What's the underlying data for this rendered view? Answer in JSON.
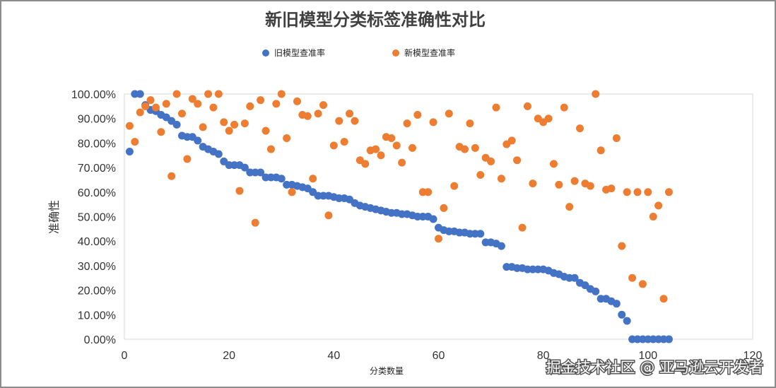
{
  "watermark": "掘金技术社区 @ 亚马逊云开发者",
  "colors": {
    "old_series": "#4472C4",
    "new_series": "#ED7D31",
    "axis": "#d9d9d9",
    "background": "#ffffff"
  },
  "chart_data": {
    "type": "scatter",
    "title": "新旧模型分类标签准确性对比",
    "xlabel": "分类数量",
    "ylabel": "准确性",
    "xlim": [
      0,
      120
    ],
    "ylim": [
      0,
      1
    ],
    "grid": false,
    "legend_position": "top",
    "x_ticks": [
      "0",
      "20",
      "40",
      "60",
      "80",
      "100",
      "120"
    ],
    "y_ticks": [
      "0.00%",
      "10.00%",
      "20.00%",
      "30.00%",
      "40.00%",
      "50.00%",
      "60.00%",
      "70.00%",
      "80.00%",
      "90.00%",
      "100.00%"
    ],
    "series": [
      {
        "name": "旧模型查准率",
        "color": "#4472C4",
        "x": [
          1,
          2,
          3,
          4,
          5,
          6,
          7,
          8,
          9,
          10,
          11,
          12,
          13,
          14,
          15,
          16,
          17,
          18,
          19,
          20,
          21,
          22,
          23,
          24,
          25,
          26,
          27,
          28,
          29,
          30,
          31,
          32,
          33,
          34,
          35,
          36,
          37,
          38,
          39,
          40,
          41,
          42,
          43,
          44,
          45,
          46,
          47,
          48,
          49,
          50,
          51,
          52,
          53,
          54,
          55,
          56,
          57,
          58,
          59,
          60,
          61,
          62,
          63,
          64,
          65,
          66,
          67,
          68,
          69,
          70,
          71,
          72,
          73,
          74,
          75,
          76,
          77,
          78,
          79,
          80,
          81,
          82,
          83,
          84,
          85,
          86,
          87,
          88,
          89,
          90,
          91,
          92,
          93,
          94,
          95,
          96,
          97,
          98,
          99,
          100,
          101,
          102,
          103,
          104
        ],
        "values": [
          0.765,
          1.0,
          1.0,
          0.955,
          0.935,
          0.93,
          0.915,
          0.905,
          0.89,
          0.875,
          0.83,
          0.825,
          0.825,
          0.81,
          0.785,
          0.775,
          0.765,
          0.755,
          0.725,
          0.71,
          0.71,
          0.71,
          0.7,
          0.68,
          0.68,
          0.68,
          0.66,
          0.66,
          0.66,
          0.655,
          0.63,
          0.63,
          0.625,
          0.62,
          0.615,
          0.6,
          0.585,
          0.585,
          0.585,
          0.58,
          0.575,
          0.575,
          0.57,
          0.555,
          0.545,
          0.54,
          0.535,
          0.53,
          0.525,
          0.52,
          0.515,
          0.515,
          0.51,
          0.51,
          0.505,
          0.5,
          0.5,
          0.5,
          0.49,
          0.455,
          0.445,
          0.44,
          0.44,
          0.435,
          0.435,
          0.43,
          0.43,
          0.43,
          0.395,
          0.395,
          0.39,
          0.38,
          0.295,
          0.295,
          0.29,
          0.29,
          0.285,
          0.285,
          0.285,
          0.285,
          0.28,
          0.27,
          0.265,
          0.255,
          0.25,
          0.25,
          0.23,
          0.22,
          0.205,
          0.195,
          0.165,
          0.165,
          0.155,
          0.145,
          0.1,
          0.075,
          0.0,
          0.0,
          0.0,
          0.0,
          0.0,
          0.0,
          0.0,
          0.0
        ]
      },
      {
        "name": "新模型查准率",
        "color": "#ED7D31",
        "x": [
          1,
          2,
          3,
          4,
          5,
          6,
          7,
          8,
          9,
          10,
          11,
          12,
          13,
          14,
          15,
          16,
          17,
          18,
          19,
          20,
          21,
          22,
          23,
          24,
          25,
          26,
          27,
          28,
          29,
          30,
          31,
          32,
          33,
          34,
          35,
          36,
          37,
          38,
          39,
          40,
          41,
          42,
          43,
          44,
          45,
          46,
          47,
          48,
          49,
          50,
          51,
          52,
          53,
          54,
          55,
          56,
          57,
          58,
          59,
          60,
          61,
          62,
          63,
          64,
          65,
          66,
          67,
          68,
          69,
          70,
          71,
          72,
          73,
          74,
          75,
          76,
          77,
          78,
          79,
          80,
          81,
          82,
          83,
          84,
          85,
          86,
          87,
          88,
          89,
          90,
          91,
          92,
          93,
          94,
          95,
          96,
          97,
          98,
          99,
          100,
          101,
          102,
          103,
          104
        ],
        "values": [
          0.87,
          0.805,
          0.925,
          0.95,
          0.975,
          0.945,
          0.845,
          0.96,
          0.665,
          1.0,
          0.92,
          0.735,
          0.98,
          0.96,
          0.865,
          1.0,
          0.945,
          1.0,
          0.885,
          0.85,
          0.875,
          0.605,
          0.88,
          0.95,
          0.475,
          0.975,
          0.85,
          0.775,
          0.96,
          1.0,
          0.82,
          0.6,
          0.97,
          0.915,
          0.91,
          0.655,
          0.92,
          0.955,
          0.505,
          0.79,
          0.89,
          0.805,
          0.92,
          0.89,
          0.73,
          0.715,
          0.77,
          0.775,
          0.75,
          0.825,
          0.82,
          0.79,
          0.72,
          0.88,
          0.78,
          0.915,
          0.6,
          0.6,
          0.885,
          0.41,
          0.535,
          0.92,
          0.625,
          0.785,
          0.775,
          0.88,
          0.78,
          0.67,
          0.74,
          0.725,
          0.945,
          0.655,
          0.795,
          0.81,
          0.73,
          0.455,
          0.95,
          0.635,
          0.9,
          0.885,
          0.9,
          0.715,
          0.63,
          0.945,
          0.54,
          0.645,
          0.86,
          0.635,
          0.625,
          1.0,
          0.77,
          0.61,
          0.615,
          0.82,
          0.38,
          0.6,
          0.25,
          0.6,
          0.225,
          0.6,
          0.5,
          0.545,
          0.165,
          0.6
        ]
      }
    ]
  }
}
